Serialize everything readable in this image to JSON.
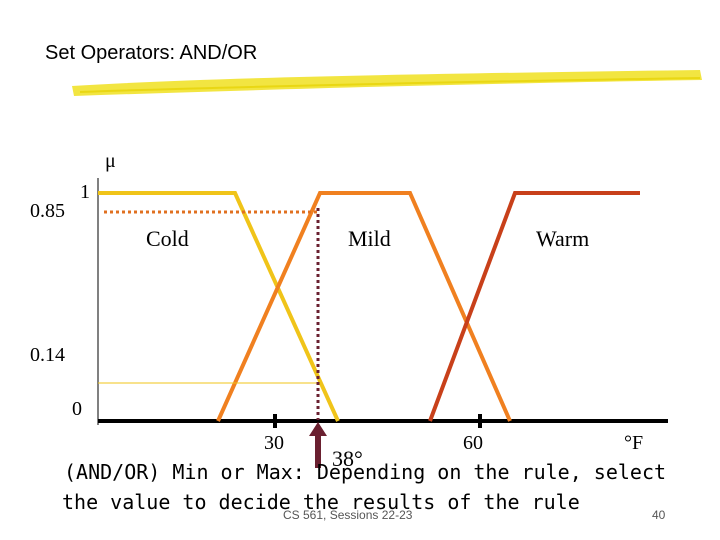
{
  "slide": {
    "title": "Set Operators: AND/OR",
    "footer": "CS 561,  Sessions 22-23",
    "page_number": "40"
  },
  "diagram": {
    "y_axis_symbol": "μ",
    "value_085": "0.85",
    "value_1": "1",
    "value_014": "0.14",
    "value_0": "0",
    "x_tick_30": "30",
    "x_tick_60": "60",
    "unit": "°F",
    "marker": "38°",
    "sets": [
      {
        "label": "Cold",
        "color": "#f0c419"
      },
      {
        "label": "Mild",
        "color": "#f08020"
      },
      {
        "label": "Warm",
        "color": "#c8401a"
      }
    ]
  },
  "caption": {
    "line1": "(AND/OR) Min  or Max: Depending on the rule, select",
    "line2": "the value to decide the results of the rule"
  },
  "colors": {
    "highlight_swoosh": "#f0e020",
    "dotted_line": "#e07020",
    "marker_arrow": "#6a2030"
  }
}
